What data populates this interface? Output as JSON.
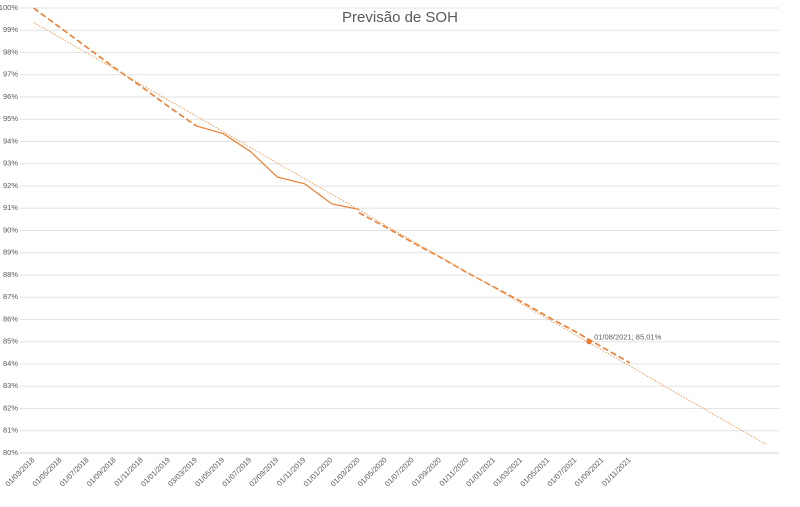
{
  "chart_data": {
    "type": "line",
    "title": "Previsão de SOH",
    "categories": [
      "01/03/2018",
      "01/05/2018",
      "01/07/2018",
      "01/09/2018",
      "01/11/2018",
      "01/01/2019",
      "03/03/2019",
      "01/05/2019",
      "01/07/2019",
      "02/09/2019",
      "01/11/2019",
      "01/01/2020",
      "01/03/2020",
      "01/05/2020",
      "01/07/2020",
      "01/09/2020",
      "01/11/2020",
      "01/01/2021",
      "01/03/2021",
      "01/05/2021",
      "01/07/2021",
      "01/09/2021",
      "01/11/2021",
      null,
      null,
      null,
      null,
      null
    ],
    "series": [
      {
        "color": "#ed7d31",
        "dash": "dashed",
        "values": [
          100,
          99.1,
          98.2,
          97.3,
          96.45,
          95.55,
          94.7,
          null,
          null,
          null,
          null,
          null,
          null,
          null,
          null,
          null,
          null,
          null,
          null,
          null,
          null,
          null,
          null,
          null,
          null,
          null,
          null,
          null
        ]
      },
      {
        "color": "#ed7d31",
        "dash": "solid",
        "values": [
          null,
          null,
          null,
          null,
          null,
          null,
          94.7,
          94.35,
          93.55,
          92.4,
          92.1,
          91.2,
          90.95,
          null,
          null,
          null,
          null,
          null,
          null,
          null,
          null,
          null,
          null,
          null,
          null,
          null,
          null,
          null
        ]
      },
      {
        "color": "#ed7d31",
        "dash": "dashed",
        "values": [
          null,
          null,
          null,
          null,
          null,
          null,
          null,
          null,
          null,
          null,
          null,
          null,
          90.8,
          90.15,
          89.45,
          88.8,
          88.1,
          87.45,
          86.8,
          86.1,
          85.45,
          84.75,
          84.05,
          null,
          null,
          null,
          null,
          null
        ]
      },
      {
        "color": "#f4a46a",
        "dash": "dotted",
        "values": [
          99.35,
          98.65,
          97.95,
          97.25,
          96.54,
          95.84,
          95.14,
          94.44,
          93.73,
          93.03,
          92.33,
          91.63,
          90.93,
          90.22,
          89.52,
          88.82,
          88.12,
          87.42,
          86.71,
          86.01,
          85.31,
          84.61,
          83.91,
          83.2,
          82.5,
          81.8,
          81.1,
          80.4
        ]
      }
    ],
    "annotation": {
      "value": 85.01,
      "label": "01/08/2021; 85,01%"
    },
    "ylim": [
      80,
      100
    ],
    "yticks": [
      {
        "value": 80,
        "label": "80%"
      },
      {
        "value": 81,
        "label": "81%"
      },
      {
        "value": 82,
        "label": "82%"
      },
      {
        "value": 83,
        "label": "83%"
      },
      {
        "value": 84,
        "label": "84%"
      },
      {
        "value": 85,
        "label": "85%"
      },
      {
        "value": 86,
        "label": "86%"
      },
      {
        "value": 87,
        "label": "87%"
      },
      {
        "value": 88,
        "label": "88%"
      },
      {
        "value": 89,
        "label": "89%"
      },
      {
        "value": 90,
        "label": "90%"
      },
      {
        "value": 91,
        "label": "91%"
      },
      {
        "value": 92,
        "label": "92%"
      },
      {
        "value": 93,
        "label": "93%"
      },
      {
        "value": 94,
        "label": "94%"
      },
      {
        "value": 95,
        "label": "95%"
      },
      {
        "value": 96,
        "label": "96%"
      },
      {
        "value": 97,
        "label": "97%"
      },
      {
        "value": 98,
        "label": "98%"
      },
      {
        "value": 99,
        "label": "99%"
      },
      {
        "value": 100,
        "label": "100%"
      }
    ],
    "grid": true
  }
}
